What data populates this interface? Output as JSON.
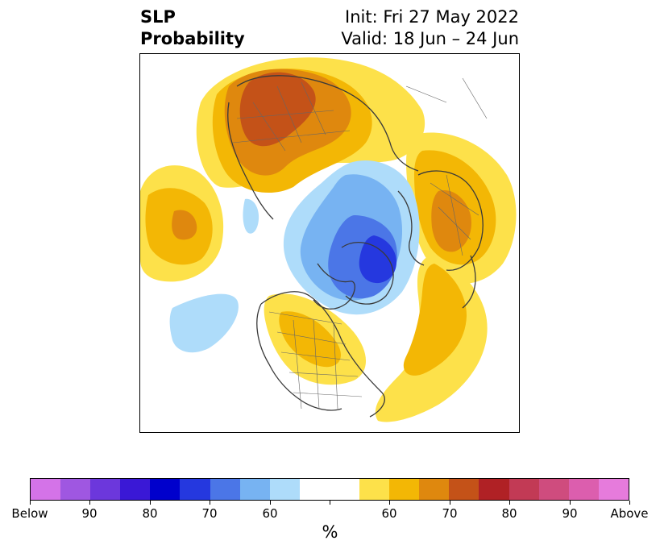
{
  "header": {
    "title_line1": "SLP",
    "title_line2": "Probability",
    "init": "Init: Fri 27 May 2022",
    "valid": "Valid: 18 Jun – 24 Jun"
  },
  "colorbar": {
    "colors": [
      "#d473e8",
      "#9f57e1",
      "#6c37dc",
      "#3a18d6",
      "#0000cc",
      "#2538df",
      "#4b76e7",
      "#77b3f2",
      "#aedcfa",
      "#ffffff",
      "#ffffff",
      "#fde14a",
      "#f3b705",
      "#df880e",
      "#c45218",
      "#b02125",
      "#c23a55",
      "#cf4c7e",
      "#dc5eae",
      "#e67bdc"
    ],
    "tick_labels": [
      "Below",
      "90",
      "80",
      "70",
      "60",
      "",
      "60",
      "70",
      "80",
      "90",
      "Above"
    ],
    "label": "%"
  }
}
